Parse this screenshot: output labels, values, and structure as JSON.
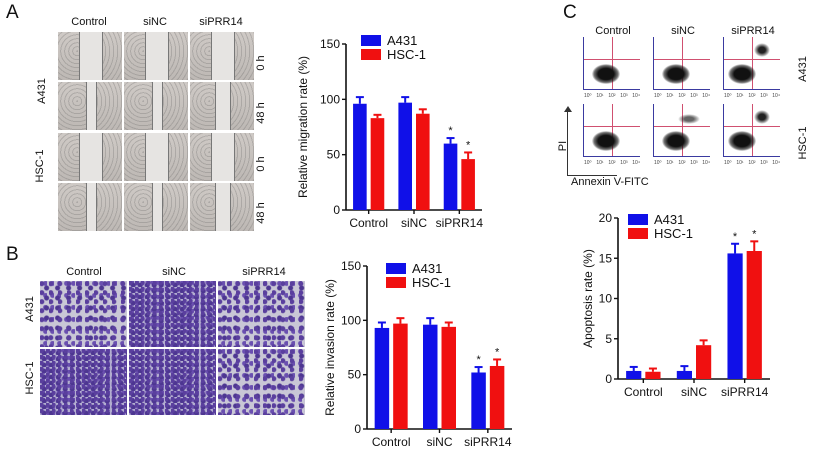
{
  "panels": {
    "A": {
      "letter": "A",
      "columns": [
        "Control",
        "siNC",
        "siPRR14"
      ],
      "rows": [
        "A431",
        "HSC-1"
      ],
      "timepoints": [
        "0 h",
        "48 h"
      ]
    },
    "B": {
      "letter": "B",
      "columns": [
        "Control",
        "siNC",
        "siPRR14"
      ],
      "rows": [
        "A431",
        "HSC-1"
      ]
    },
    "C": {
      "letter": "C",
      "columns": [
        "Control",
        "siNC",
        "siPRR14"
      ],
      "rows": [
        "A431",
        "HSC-1"
      ],
      "y_axis": "PI",
      "x_axis": "Annexin V-FITC",
      "tick_labels": [
        "10⁰",
        "10¹",
        "10²",
        "10³",
        "10⁴"
      ]
    }
  },
  "colors": {
    "A431": "#1010e8",
    "HSC-1": "#f01010"
  },
  "chart_data": [
    {
      "type": "bar",
      "panel": "A",
      "title": "",
      "categories": [
        "Control",
        "siNC",
        "siPRR14"
      ],
      "series": [
        {
          "name": "A431",
          "values": [
            96,
            97,
            60
          ],
          "errors": [
            6,
            5,
            5
          ]
        },
        {
          "name": "HSC-1",
          "values": [
            83,
            87,
            46
          ],
          "errors": [
            3,
            4,
            6
          ]
        }
      ],
      "significance": [
        "",
        "",
        "* *"
      ],
      "xlabel": "",
      "ylabel": "Relative migration rate (%)",
      "ylim": [
        0,
        150
      ],
      "yticks": [
        0,
        50,
        100,
        150
      ],
      "legend": [
        "A431",
        "HSC-1"
      ],
      "legend_position": "top-left inside"
    },
    {
      "type": "bar",
      "panel": "B",
      "title": "",
      "categories": [
        "Control",
        "siNC",
        "siPRR14"
      ],
      "series": [
        {
          "name": "A431",
          "values": [
            93,
            96,
            52
          ],
          "errors": [
            5,
            6,
            5
          ]
        },
        {
          "name": "HSC-1",
          "values": [
            97,
            94,
            58
          ],
          "errors": [
            5,
            4,
            6
          ]
        }
      ],
      "significance": [
        "",
        "",
        "* *"
      ],
      "xlabel": "",
      "ylabel": "Relative invasion rate (%)",
      "ylim": [
        0,
        150
      ],
      "yticks": [
        0,
        50,
        100,
        150
      ],
      "legend": [
        "A431",
        "HSC-1"
      ],
      "legend_position": "top-left inside"
    },
    {
      "type": "bar",
      "panel": "C",
      "title": "",
      "categories": [
        "Control",
        "siNC",
        "siPRR14"
      ],
      "series": [
        {
          "name": "A431",
          "values": [
            1.0,
            1.0,
            15.6
          ],
          "errors": [
            0.5,
            0.6,
            1.2
          ]
        },
        {
          "name": "HSC-1",
          "values": [
            0.9,
            4.2,
            15.9
          ],
          "errors": [
            0.4,
            0.6,
            1.2
          ]
        }
      ],
      "significance": [
        "",
        "",
        "* *"
      ],
      "xlabel": "",
      "ylabel": "Apoptosis rate (%)",
      "ylim": [
        0,
        20
      ],
      "yticks": [
        0,
        5,
        10,
        15,
        20
      ],
      "legend": [
        "A431",
        "HSC-1"
      ],
      "legend_position": "top-left inside"
    }
  ]
}
